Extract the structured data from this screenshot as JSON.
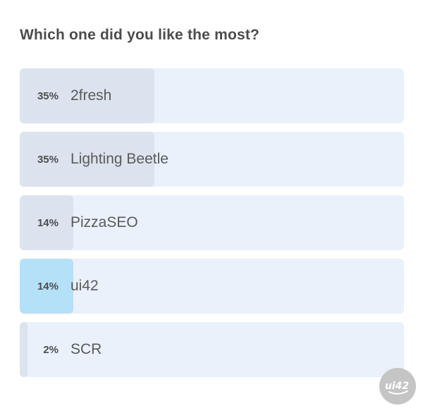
{
  "poll": {
    "question": "Which one did you like the most?",
    "options": [
      {
        "percent": 35,
        "percent_label": "35%",
        "label": "2fresh",
        "highlighted": false
      },
      {
        "percent": 35,
        "percent_label": "35%",
        "label": "Lighting Beetle",
        "highlighted": false
      },
      {
        "percent": 14,
        "percent_label": "14%",
        "label": "PizzaSEO",
        "highlighted": false
      },
      {
        "percent": 14,
        "percent_label": "14%",
        "label": "ui42",
        "highlighted": true
      },
      {
        "percent": 2,
        "percent_label": "2%",
        "label": "SCR",
        "highlighted": false
      }
    ]
  },
  "branding": {
    "logo_text": "ui42"
  },
  "colors": {
    "track": "#eaf1fb",
    "fill": "#dce2ee",
    "fill_highlight": "#b4e0f8",
    "title": "#4c4c4c",
    "text": "#4d4d4d",
    "label": "#5a5a5a",
    "logo_bg": "#c5c5c5",
    "logo_text": "#ffffff"
  },
  "chart_data": {
    "type": "bar",
    "orientation": "horizontal",
    "title": "Which one did you like the most?",
    "categories": [
      "2fresh",
      "Lighting Beetle",
      "PizzaSEO",
      "ui42",
      "SCR"
    ],
    "values": [
      35,
      35,
      14,
      14,
      2
    ],
    "unit": "%",
    "xlim": [
      0,
      100
    ],
    "grid": false,
    "legend": false,
    "highlighted_category": "ui42",
    "data_labels": [
      "35%",
      "35%",
      "14%",
      "14%",
      "2%"
    ]
  }
}
